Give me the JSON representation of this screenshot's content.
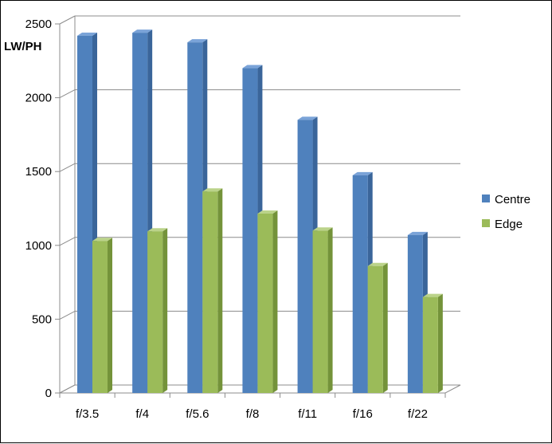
{
  "chart_data": {
    "type": "bar",
    "ylabel": "LW/PH",
    "ylim": [
      0,
      2500
    ],
    "yticks": [
      0,
      500,
      1000,
      1500,
      2000,
      2500
    ],
    "categories": [
      "f/3.5",
      "f/4",
      "f/5.6",
      "f/8",
      "f/11",
      "f/16",
      "f/22"
    ],
    "series": [
      {
        "name": "Centre",
        "values": [
          2420,
          2440,
          2375,
          2200,
          1850,
          1475,
          1070
        ]
      },
      {
        "name": "Edge",
        "values": [
          1030,
          1095,
          1365,
          1215,
          1100,
          860,
          650
        ]
      }
    ],
    "grid": true,
    "legend_position": "right",
    "three_d": true,
    "colors": {
      "Centre": {
        "front": "#4F81BD",
        "side": "#3A659A",
        "top": "#7AA3D8"
      },
      "Edge": {
        "front": "#9BBB59",
        "side": "#74933A",
        "top": "#BBD38A"
      },
      "grid": "#8C8C8C",
      "wall": "#ffffff"
    }
  }
}
